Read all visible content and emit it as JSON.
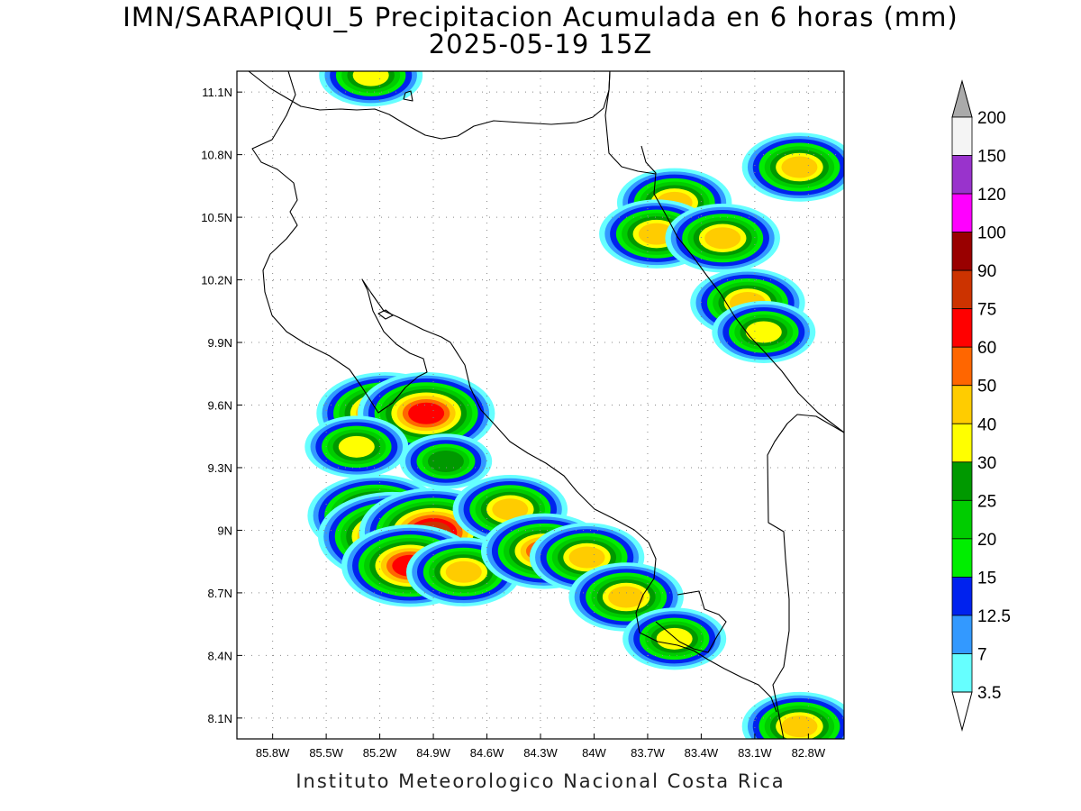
{
  "title": {
    "line1": "IMN/SARAPIQUI_5 Precipitacion Acumulada en 6 horas (mm)",
    "line2": "2025-05-19 15Z"
  },
  "footer": "Instituto Meteorologico Nacional Costa Rica",
  "map": {
    "lon_range": [
      -86.0,
      -82.6
    ],
    "lat_range": [
      8.0,
      11.2
    ],
    "lat_ticks": [
      {
        "value": 11.1,
        "label": "11.1N"
      },
      {
        "value": 10.8,
        "label": "10.8N"
      },
      {
        "value": 10.5,
        "label": "10.5N"
      },
      {
        "value": 10.2,
        "label": "10.2N"
      },
      {
        "value": 9.9,
        "label": "9.9N"
      },
      {
        "value": 9.6,
        "label": "9.6N"
      },
      {
        "value": 9.3,
        "label": "9.3N"
      },
      {
        "value": 9.0,
        "label": "9N"
      },
      {
        "value": 8.7,
        "label": "8.7N"
      },
      {
        "value": 8.4,
        "label": "8.4N"
      },
      {
        "value": 8.1,
        "label": "8.1N"
      }
    ],
    "lon_ticks": [
      {
        "value": -85.8,
        "label": "85.8W"
      },
      {
        "value": -85.5,
        "label": "85.5W"
      },
      {
        "value": -85.2,
        "label": "85.2W"
      },
      {
        "value": -84.9,
        "label": "84.9W"
      },
      {
        "value": -84.6,
        "label": "84.6W"
      },
      {
        "value": -84.3,
        "label": "84.3W"
      },
      {
        "value": -84.0,
        "label": "84W"
      },
      {
        "value": -83.7,
        "label": "83.7W"
      },
      {
        "value": -83.4,
        "label": "83.4W"
      },
      {
        "value": -83.1,
        "label": "83.1W"
      },
      {
        "value": -82.8,
        "label": "82.8W"
      }
    ],
    "grid": true
  },
  "colorbar": {
    "units": "mm",
    "colors": [
      "#66ffff",
      "#3399ff",
      "#0022ee",
      "#00ee00",
      "#00cc00",
      "#009900",
      "#ffff00",
      "#ffcc00",
      "#ff6600",
      "#ff0000",
      "#cc3300",
      "#990000",
      "#ff00ff",
      "#9933cc",
      "#f4f4f4",
      "#aaaaaa"
    ],
    "labels": [
      "3.5",
      "7",
      "12.5",
      "15",
      "20",
      "25",
      "30",
      "40",
      "50",
      "60",
      "75",
      "90",
      "100",
      "120",
      "150",
      "200"
    ]
  },
  "chart_data": {
    "type": "heatmap",
    "title": "IMN/SARAPIQUI_5 Precipitacion Acumulada en 6 horas (mm)",
    "subtitle": "2025-05-19 15Z",
    "xlim": [
      -86.0,
      -82.6
    ],
    "ylim": [
      8.0,
      11.2
    ],
    "levels": [
      3.5,
      7,
      12.5,
      15,
      20,
      25,
      30,
      40,
      50,
      60,
      75,
      90,
      100,
      120,
      150,
      200
    ],
    "cells": [
      {
        "lon": -85.17,
        "lat": 9.56,
        "max": 60
      },
      {
        "lon": -84.94,
        "lat": 9.56,
        "max": 60
      },
      {
        "lon": -85.33,
        "lat": 9.4,
        "max": 30
      },
      {
        "lon": -84.83,
        "lat": 9.33,
        "max": 25
      },
      {
        "lon": -85.22,
        "lat": 9.07,
        "max": 60
      },
      {
        "lon": -85.13,
        "lat": 8.97,
        "max": 75
      },
      {
        "lon": -84.9,
        "lat": 8.99,
        "max": 75
      },
      {
        "lon": -85.03,
        "lat": 8.83,
        "max": 60
      },
      {
        "lon": -84.73,
        "lat": 8.8,
        "max": 40
      },
      {
        "lon": -84.47,
        "lat": 9.1,
        "max": 40
      },
      {
        "lon": -84.28,
        "lat": 8.9,
        "max": 50
      },
      {
        "lon": -84.04,
        "lat": 8.87,
        "max": 40
      },
      {
        "lon": -83.82,
        "lat": 8.68,
        "max": 40
      },
      {
        "lon": -83.55,
        "lat": 8.48,
        "max": 30
      },
      {
        "lon": -82.85,
        "lat": 8.06,
        "max": 40
      },
      {
        "lon": -83.55,
        "lat": 10.57,
        "max": 40
      },
      {
        "lon": -83.65,
        "lat": 10.42,
        "max": 40
      },
      {
        "lon": -83.28,
        "lat": 10.4,
        "max": 40
      },
      {
        "lon": -83.14,
        "lat": 10.09,
        "max": 40
      },
      {
        "lon": -83.05,
        "lat": 9.95,
        "max": 30
      },
      {
        "lon": -82.85,
        "lat": 10.74,
        "max": 40
      },
      {
        "lon": -85.25,
        "lat": 11.18,
        "max": 30
      }
    ]
  }
}
